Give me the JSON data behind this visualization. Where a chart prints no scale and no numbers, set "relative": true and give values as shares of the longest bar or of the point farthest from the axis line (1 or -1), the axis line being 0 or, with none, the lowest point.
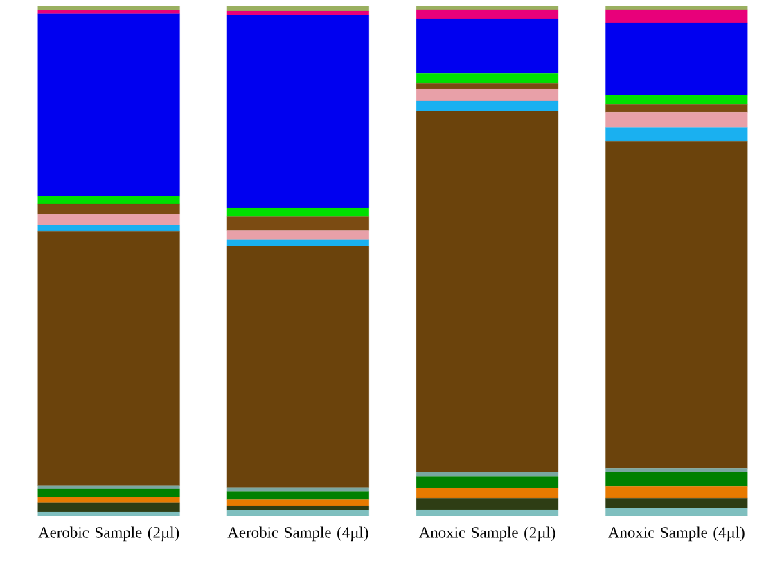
{
  "chart_data": {
    "type": "bar",
    "stacked": true,
    "relative": true,
    "categories": [
      "Aerobic Sample (2µl)",
      "Aerobic Sample (4µl)",
      "Anoxic Sample (2µl)",
      "Anoxic Sample (4µl)"
    ],
    "series": [
      {
        "color": "#7fbfbf",
        "values": [
          0.008,
          0.011,
          0.012,
          0.015
        ]
      },
      {
        "color": "#2e3d14",
        "values": [
          0.018,
          0.009,
          0.023,
          0.02
        ]
      },
      {
        "color": "#e87a00",
        "values": [
          0.011,
          0.012,
          0.02,
          0.023
        ]
      },
      {
        "color": "#008000",
        "values": [
          0.016,
          0.016,
          0.023,
          0.028
        ]
      },
      {
        "color": "#7aa6a0",
        "values": [
          0.007,
          0.008,
          0.008,
          0.007
        ]
      },
      {
        "color": "#6b430c",
        "values": [
          0.498,
          0.473,
          0.707,
          0.641
        ]
      },
      {
        "color": "#1ab0f0",
        "values": [
          0.011,
          0.012,
          0.02,
          0.027
        ]
      },
      {
        "color": "#e8a0a8",
        "values": [
          0.022,
          0.018,
          0.024,
          0.03
        ]
      },
      {
        "color": "#7b4b12",
        "values": [
          0.02,
          0.027,
          0.011,
          0.015
        ]
      },
      {
        "color": "#00e000",
        "values": [
          0.015,
          0.018,
          0.019,
          0.018
        ]
      },
      {
        "color": "#0000f0",
        "values": [
          0.358,
          0.377,
          0.107,
          0.142
        ]
      },
      {
        "color": "#e8007a",
        "values": [
          0.007,
          0.008,
          0.018,
          0.026
        ]
      },
      {
        "color": "#9ab060",
        "values": [
          0.009,
          0.011,
          0.008,
          0.008
        ]
      }
    ]
  }
}
